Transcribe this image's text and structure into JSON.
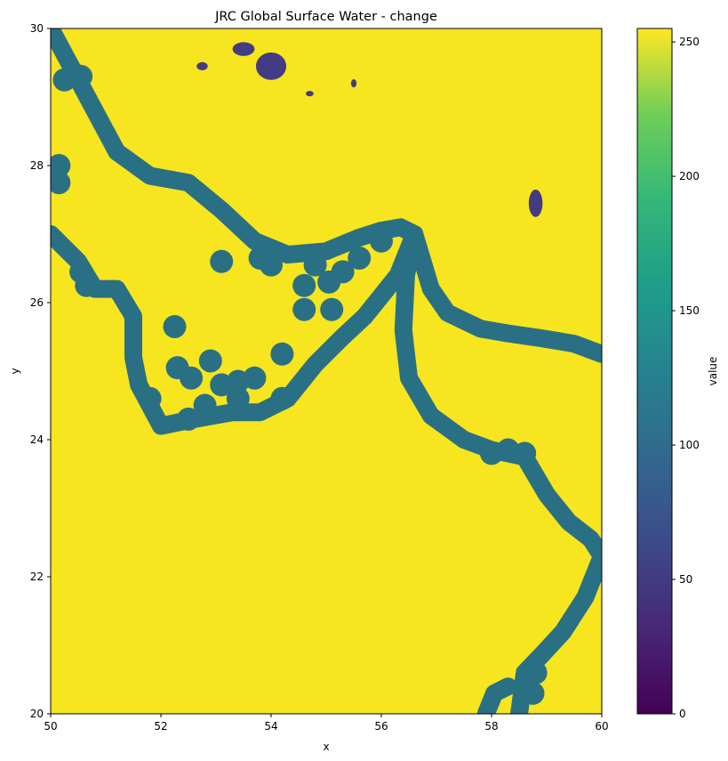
{
  "chart_data": {
    "type": "heatmap",
    "title": "JRC Global Surface Water - change",
    "xlabel": "x",
    "ylabel": "y",
    "xlim": [
      50,
      60
    ],
    "ylim": [
      20,
      30
    ],
    "x_ticks": [
      50,
      52,
      54,
      56,
      58,
      60
    ],
    "y_ticks": [
      20,
      22,
      24,
      26,
      28,
      30
    ],
    "colorbar": {
      "label": "value",
      "range": [
        0,
        255
      ],
      "ticks": [
        0,
        50,
        100,
        150,
        200,
        250
      ],
      "colormap": "viridis"
    },
    "background_value": 255,
    "background_color": "#f6e51f",
    "band_value": 100,
    "band_color": "#2a7085",
    "lake_value": 60,
    "lake_color": "#433b83",
    "grid": false,
    "features": {
      "coast_north": [
        [
          50.0,
          30.0
        ],
        [
          50.4,
          29.4
        ],
        [
          50.8,
          28.8
        ],
        [
          51.2,
          28.2
        ],
        [
          51.8,
          27.85
        ],
        [
          52.5,
          27.75
        ],
        [
          53.1,
          27.35
        ],
        [
          53.7,
          26.9
        ],
        [
          54.3,
          26.7
        ],
        [
          55.0,
          26.75
        ],
        [
          55.6,
          26.95
        ],
        [
          56.0,
          27.05
        ],
        [
          56.35,
          27.1
        ],
        [
          56.6,
          27.0
        ]
      ],
      "coast_iran_east": [
        [
          56.6,
          27.0
        ],
        [
          56.75,
          26.6
        ],
        [
          56.9,
          26.2
        ],
        [
          57.2,
          25.85
        ],
        [
          57.8,
          25.62
        ],
        [
          58.3,
          25.55
        ],
        [
          58.9,
          25.48
        ],
        [
          59.5,
          25.4
        ],
        [
          60.0,
          25.25
        ]
      ],
      "coast_gulf_west": [
        [
          50.0,
          27.0
        ],
        [
          50.5,
          26.6
        ],
        [
          50.8,
          26.2
        ],
        [
          51.2,
          26.2
        ],
        [
          51.5,
          25.8
        ],
        [
          51.5,
          25.2
        ],
        [
          51.6,
          24.8
        ]
      ],
      "coast_gulf_south": [
        [
          51.6,
          24.8
        ],
        [
          52.0,
          24.2
        ],
        [
          52.6,
          24.3
        ],
        [
          53.3,
          24.4
        ],
        [
          53.8,
          24.4
        ],
        [
          54.3,
          24.6
        ],
        [
          54.8,
          25.1
        ],
        [
          55.3,
          25.5
        ],
        [
          55.7,
          25.8
        ],
        [
          56.0,
          26.1
        ],
        [
          56.3,
          26.4
        ],
        [
          56.6,
          27.0
        ]
      ],
      "coast_oman": [
        [
          56.6,
          27.0
        ],
        [
          56.45,
          26.4
        ],
        [
          56.4,
          25.6
        ],
        [
          56.5,
          24.9
        ],
        [
          56.9,
          24.35
        ],
        [
          57.5,
          24.0
        ],
        [
          58.0,
          23.85
        ],
        [
          58.6,
          23.75
        ],
        [
          59.0,
          23.2
        ],
        [
          59.4,
          22.8
        ],
        [
          59.8,
          22.55
        ],
        [
          60.0,
          22.3
        ],
        [
          59.7,
          21.7
        ],
        [
          59.3,
          21.2
        ],
        [
          58.9,
          20.85
        ],
        [
          58.6,
          20.6
        ],
        [
          58.5,
          20.0
        ]
      ],
      "coast_masirah": [
        [
          57.9,
          20.0
        ],
        [
          58.05,
          20.3
        ],
        [
          58.3,
          20.4
        ]
      ],
      "islands": [
        [
          50.25,
          29.25
        ],
        [
          50.4,
          29.35
        ],
        [
          50.55,
          29.3
        ],
        [
          50.15,
          28.0
        ],
        [
          50.15,
          27.75
        ],
        [
          50.55,
          26.45
        ],
        [
          50.65,
          26.25
        ],
        [
          52.25,
          25.65
        ],
        [
          52.3,
          25.05
        ],
        [
          52.55,
          24.9
        ],
        [
          52.9,
          25.15
        ],
        [
          53.1,
          24.8
        ],
        [
          52.8,
          24.5
        ],
        [
          52.5,
          24.3
        ],
        [
          53.4,
          24.6
        ],
        [
          53.7,
          24.9
        ],
        [
          53.4,
          24.85
        ],
        [
          51.8,
          24.6
        ],
        [
          54.2,
          25.25
        ],
        [
          54.2,
          24.6
        ],
        [
          54.6,
          26.25
        ],
        [
          54.6,
          25.9
        ],
        [
          55.05,
          26.3
        ],
        [
          55.1,
          25.9
        ],
        [
          53.1,
          26.6
        ],
        [
          53.8,
          26.65
        ],
        [
          54.0,
          26.55
        ],
        [
          54.8,
          26.55
        ],
        [
          55.3,
          26.45
        ],
        [
          55.6,
          26.65
        ],
        [
          56.0,
          26.9
        ],
        [
          58.0,
          23.8
        ],
        [
          58.3,
          23.85
        ],
        [
          58.6,
          23.8
        ],
        [
          58.8,
          20.6
        ],
        [
          58.75,
          20.3
        ]
      ],
      "lakes": [
        {
          "center": [
            58.8,
            27.45
          ],
          "size": [
            0.25,
            0.4
          ]
        },
        {
          "center": [
            54.0,
            29.45
          ],
          "size": [
            0.55,
            0.4
          ]
        },
        {
          "center": [
            53.5,
            29.7
          ],
          "size": [
            0.4,
            0.2
          ]
        },
        {
          "center": [
            52.75,
            29.45
          ],
          "size": [
            0.2,
            0.12
          ]
        },
        {
          "center": [
            55.5,
            29.2
          ],
          "size": [
            0.1,
            0.12
          ]
        },
        {
          "center": [
            54.7,
            29.05
          ],
          "size": [
            0.14,
            0.08
          ]
        }
      ]
    }
  }
}
